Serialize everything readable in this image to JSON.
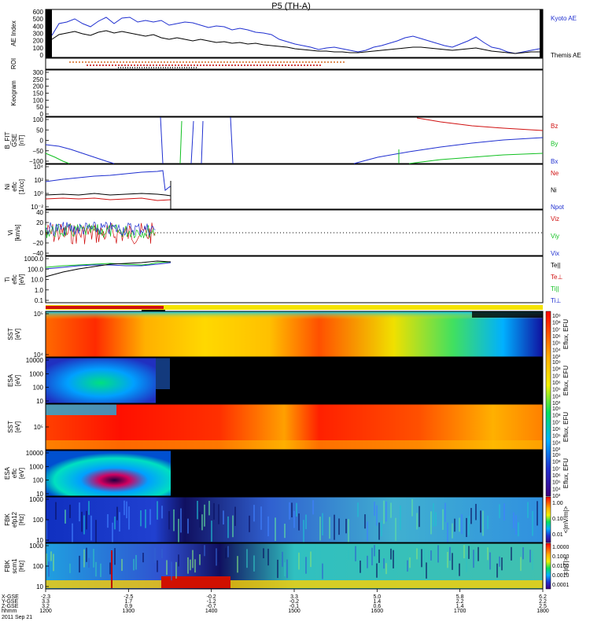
{
  "title": "P5 (TH-A)",
  "colors": {
    "blue": "#1f2fd0",
    "red": "#d01010",
    "green": "#10c020",
    "black": "#000000"
  },
  "panels": [
    {
      "id": "ae",
      "ylabel_lines": [
        "AE Index"
      ],
      "ticks": [
        "600",
        "500",
        "400",
        "300",
        "200",
        "100",
        "0"
      ],
      "legend": [
        {
          "label": "Kyoto AE",
          "color": "#1f2fd0"
        },
        {
          "label": "Themis AE",
          "color": "#000000"
        }
      ]
    },
    {
      "id": "roi",
      "ylabel_lines": [
        "ROI"
      ],
      "ticks": []
    },
    {
      "id": "keogram",
      "ylabel_lines": [
        "Keogram"
      ],
      "ticks": [
        "300",
        "250",
        "200",
        "150",
        "100",
        "50",
        "0"
      ]
    },
    {
      "id": "bfit",
      "ylabel_lines": [
        "B_FIT",
        "GSE",
        "[nT]"
      ],
      "ticks": [
        "100",
        "50",
        "0",
        "−50",
        "−100"
      ],
      "legend": [
        {
          "label": "Bz",
          "color": "#d01010"
        },
        {
          "label": "By",
          "color": "#10c020"
        },
        {
          "label": "Bx",
          "color": "#1f2fd0"
        }
      ]
    },
    {
      "id": "ni",
      "ylabel_lines": [
        "Ni",
        "eflc",
        "[1/cc]"
      ],
      "ticks": [
        "10⁴",
        "10²",
        "10⁰",
        "10⁻²"
      ],
      "legend": [
        {
          "label": "Ne",
          "color": "#d01010"
        },
        {
          "label": "Ni",
          "color": "#000000"
        },
        {
          "label": "Npot",
          "color": "#1f2fd0"
        }
      ]
    },
    {
      "id": "vi",
      "ylabel_lines": [
        "Vi",
        "[km/s]"
      ],
      "ticks": [
        "40",
        "20",
        "0",
        "−20",
        "−40"
      ],
      "legend": [
        {
          "label": "Viz",
          "color": "#d01010"
        },
        {
          "label": "Viy",
          "color": "#10c020"
        },
        {
          "label": "Vix",
          "color": "#1f2fd0"
        }
      ]
    },
    {
      "id": "ti",
      "ylabel_lines": [
        "Ti",
        "eflc",
        "[eV]"
      ],
      "ticks": [
        "1000.0",
        "100.0",
        "10.0",
        "1.0",
        "0.1"
      ],
      "legend": [
        {
          "label": "Te||",
          "color": "#000000"
        },
        {
          "label": "Te⊥",
          "color": "#d01010"
        },
        {
          "label": "Ti||",
          "color": "#10c020"
        },
        {
          "label": "Ti⊥",
          "color": "#1f2fd0"
        }
      ]
    },
    {
      "id": "sst1",
      "ylabel_lines": [
        "SST",
        "[eV]"
      ],
      "ticks": [
        "10⁵",
        "10⁴"
      ],
      "cbar": "Eflux, EFU"
    },
    {
      "id": "esa1",
      "ylabel_lines": [
        "ESA",
        "[eV]"
      ],
      "ticks": [
        "10000",
        "1000",
        "100",
        "10"
      ],
      "cbar": "Eflux, EFU"
    },
    {
      "id": "sst2",
      "ylabel_lines": [
        "SST",
        "[eV]"
      ],
      "ticks": [
        "10⁵"
      ],
      "cbar": "Eflux, EFU"
    },
    {
      "id": "esa2",
      "ylabel_lines": [
        "ESA",
        "eflc",
        "[eV]"
      ],
      "ticks": [
        "10000",
        "1000",
        "100",
        "10"
      ],
      "cbar": "Eflux, EFU"
    },
    {
      "id": "fbk1",
      "ylabel_lines": [
        "FBK",
        "efp12",
        "[Hz]"
      ],
      "ticks": [
        "1000",
        "100",
        "10"
      ],
      "cbar": "<|mV/m|>"
    },
    {
      "id": "fbk2",
      "ylabel_lines": [
        "FBK",
        "scm1",
        "[Hz]"
      ],
      "ticks": [
        "1000",
        "100",
        "10"
      ],
      "cbar": "<|nT|>"
    }
  ],
  "colorbars": {
    "eflux_ticks": [
      "10⁹",
      "10⁸",
      "10⁷",
      "10⁶",
      "10⁵",
      "10⁴",
      "10³"
    ],
    "mv_ticks": [
      "1.00",
      "0.10",
      "0.01"
    ],
    "nt_ticks": [
      "1.0000",
      "0.1000",
      "0.0100",
      "0.0010",
      "0.0001"
    ]
  },
  "xaxis": {
    "row_labels": [
      "X-GSE",
      "Y-GSE",
      "Z-GSE",
      "hhmm",
      "2011 Sep 21"
    ],
    "columns": [
      {
        "x": "-2.3",
        "y": "3.3",
        "z": "3.2",
        "t": "1200"
      },
      {
        "x": "-2.5",
        "y": "1.7",
        "z": "0.9",
        "t": "1300"
      },
      {
        "x": "-0.2",
        "y": "-1.2",
        "z": "-0.7",
        "t": "1400"
      },
      {
        "x": "3.3",
        "y": "-0.2",
        "z": "-0.1",
        "t": "1500"
      },
      {
        "x": "5.0",
        "y": "1.4",
        "z": "0.6",
        "t": "1600"
      },
      {
        "x": "5.8",
        "y": "2.2",
        "z": "1.4",
        "t": "1700"
      },
      {
        "x": "6.2",
        "y": "2.2",
        "z": "2.5",
        "t": "1800"
      }
    ]
  }
}
